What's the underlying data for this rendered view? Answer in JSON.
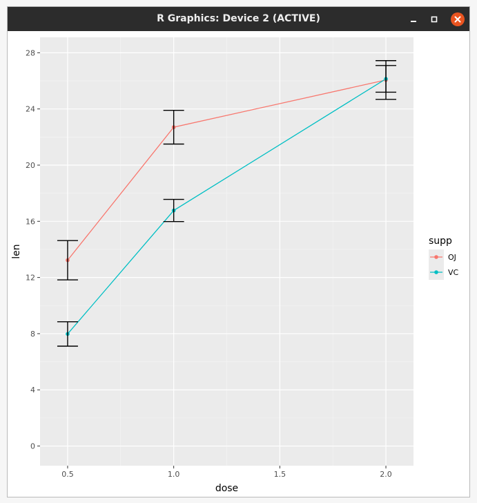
{
  "window": {
    "title": "R Graphics: Device 2 (ACTIVE)"
  },
  "chart_data": {
    "type": "line",
    "x_type": "categorical",
    "categories": [
      "0.5",
      "1.0",
      "2.0"
    ],
    "x": [
      0.5,
      1.0,
      2.0
    ],
    "x_ticks": [
      "0.5",
      "1.0",
      "1.5",
      "2.0"
    ],
    "xlim": [
      0.37,
      2.13
    ],
    "ylim": [
      -1.4,
      29.1
    ],
    "y_ticks": [
      0,
      4,
      8,
      12,
      16,
      20,
      24,
      28
    ],
    "xlabel": "dose",
    "ylabel": "len",
    "grid": true,
    "legend": {
      "title": "supp",
      "position": "right"
    },
    "series": [
      {
        "name": "OJ",
        "color": "#F8766D",
        "values": [
          13.23,
          22.7,
          26.06
        ],
        "err_low": [
          11.83,
          21.5,
          24.68
        ],
        "err_high": [
          14.63,
          23.9,
          27.44
        ]
      },
      {
        "name": "VC",
        "color": "#00BFC4",
        "values": [
          7.98,
          16.77,
          26.14
        ],
        "err_low": [
          7.11,
          15.98,
          25.19
        ],
        "err_high": [
          8.85,
          17.56,
          27.09
        ]
      }
    ],
    "error_bar_color": "#000000"
  }
}
